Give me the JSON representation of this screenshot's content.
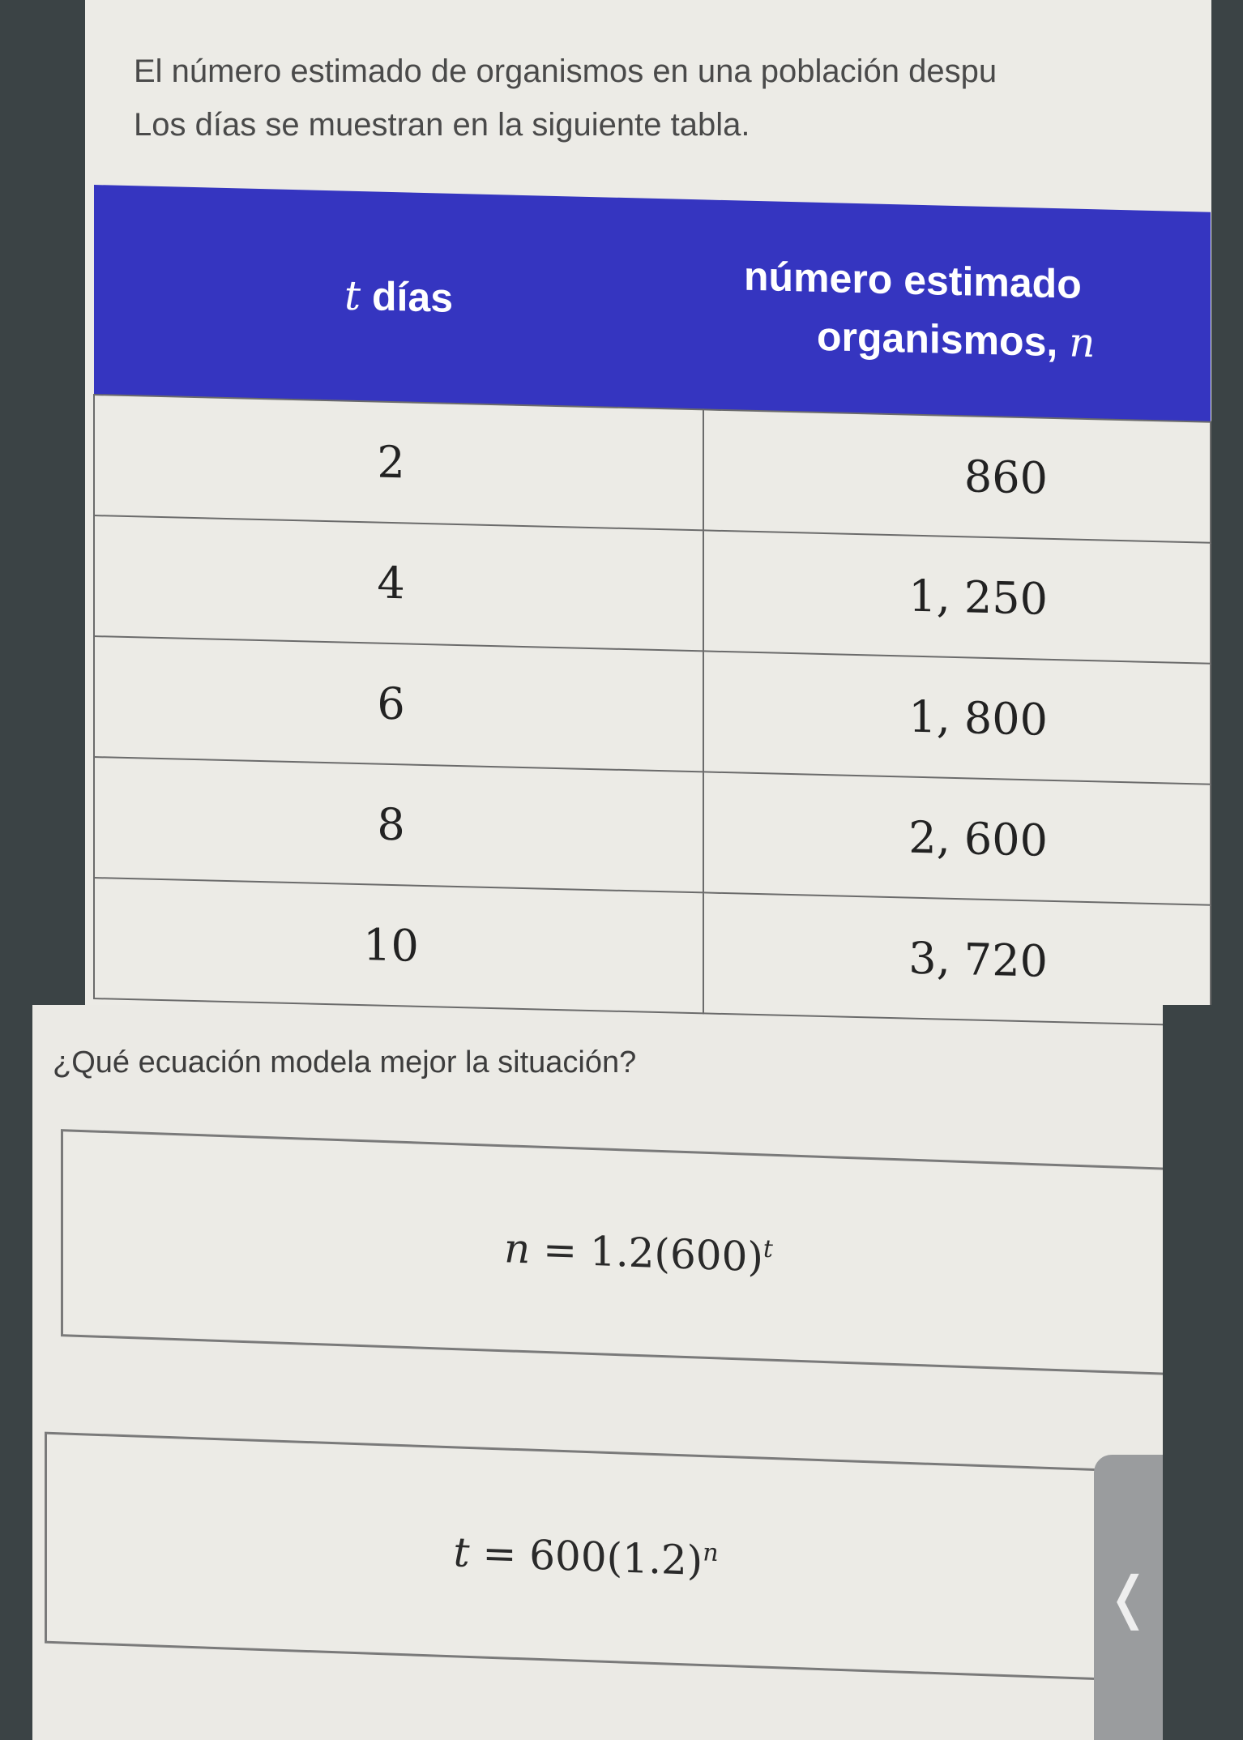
{
  "prompt": {
    "line1": "El número estimado de organismos en una población despu",
    "line2": "Los días se muestran en la siguiente tabla."
  },
  "table": {
    "headers": [
      {
        "var": "t",
        "text": " días"
      },
      {
        "line1": "número estimado",
        "line2": "organismos, ",
        "var": "n"
      }
    ],
    "rows": [
      {
        "t": "2",
        "n": "860"
      },
      {
        "t": "4",
        "n": "1, 250"
      },
      {
        "t": "6",
        "n": "1, 800"
      },
      {
        "t": "8",
        "n": "2, 600"
      },
      {
        "t": "10",
        "n": "3, 720"
      }
    ],
    "header_color": "#3535c0"
  },
  "question": "¿Qué ecuación modela mejor la situación?",
  "options": [
    {
      "lhs": "n",
      "rhs": " = 1.2(600)",
      "exp": "t"
    },
    {
      "lhs": "t",
      "rhs": " = 600(1.2)",
      "exp": "n"
    }
  ],
  "side_tab": {
    "icon": "chevron-left-icon",
    "glyph": "❬"
  }
}
